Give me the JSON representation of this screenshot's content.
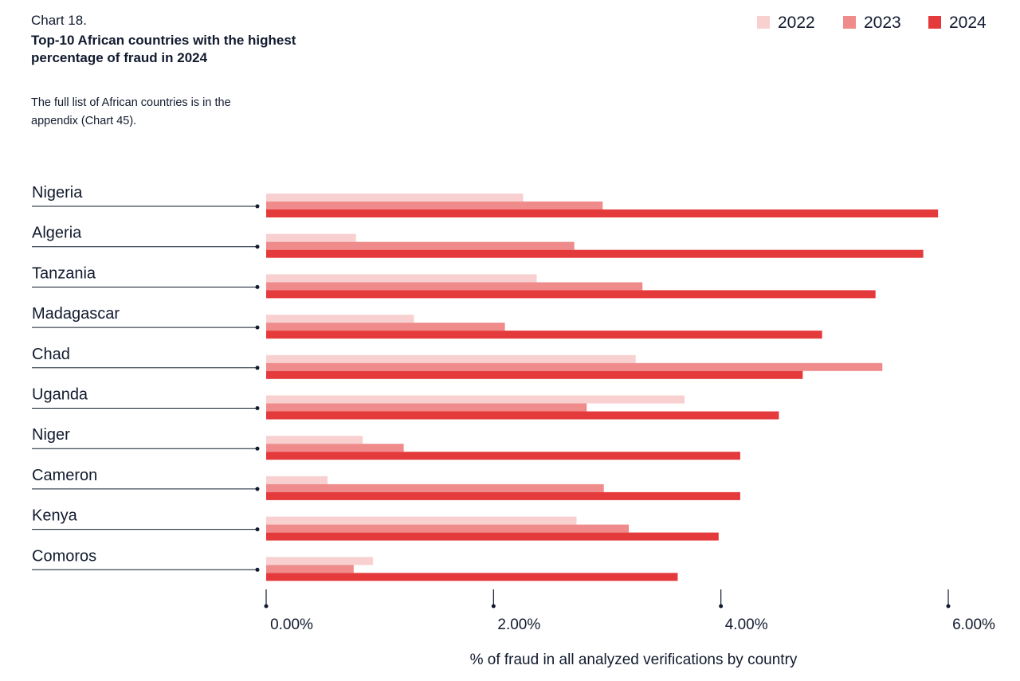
{
  "chart_data": {
    "type": "bar",
    "orientation": "horizontal",
    "kicker": "Chart 18.",
    "title": "Top-10 African countries with the highest percentage of fraud in 2024",
    "note": "The full list of African countries is in the appendix (Chart 45).",
    "x_label": "% of fraud in all analyzed verifications by country",
    "categories": [
      "Nigeria",
      "Algeria",
      "Tanzania",
      "Madagascar",
      "Chad",
      "Uganda",
      "Niger",
      "Cameron",
      "Kenya",
      "Comoros"
    ],
    "series": [
      {
        "name": "2022",
        "color": "#f9d0d0",
        "values": [
          2.26,
          0.79,
          2.38,
          1.3,
          3.25,
          3.68,
          0.85,
          0.54,
          2.73,
          0.94
        ]
      },
      {
        "name": "2023",
        "color": "#ef8b8b",
        "values": [
          2.96,
          2.71,
          3.31,
          2.1,
          5.42,
          2.82,
          1.21,
          2.97,
          3.19,
          0.77
        ]
      },
      {
        "name": "2024",
        "color": "#e53a3c",
        "values": [
          5.91,
          5.78,
          5.36,
          4.89,
          4.72,
          4.51,
          4.17,
          4.17,
          3.98,
          3.62
        ]
      }
    ],
    "xlim": [
      0,
      6
    ],
    "xticks": [
      {
        "value": 0,
        "label": "0.00%"
      },
      {
        "value": 2,
        "label": "2.00%"
      },
      {
        "value": 4,
        "label": "4.00%"
      },
      {
        "value": 6,
        "label": "6.00%"
      }
    ],
    "legend": "top-right"
  }
}
